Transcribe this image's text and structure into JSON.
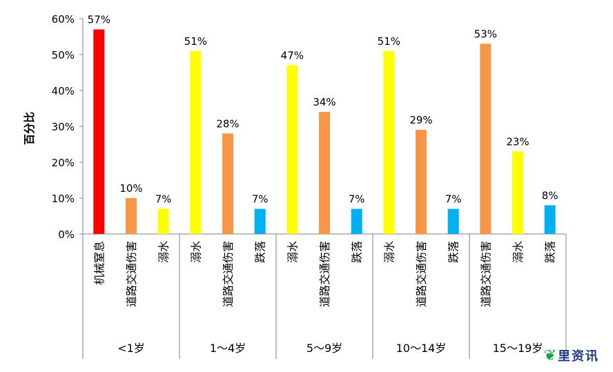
{
  "chart_data": {
    "type": "bar",
    "title": "",
    "ylabel": "百分比",
    "xlabel": "",
    "ylim": [
      0,
      60
    ],
    "yticks": [
      0,
      10,
      20,
      30,
      40,
      50,
      60
    ],
    "ytick_labels": [
      "0%",
      "10%",
      "20%",
      "30%",
      "40%",
      "50%",
      "60%"
    ],
    "grid": false,
    "legend": "none",
    "groups": [
      {
        "label": "<1岁",
        "bars": [
          {
            "category": "机械窒息",
            "value": 57,
            "label": "57%",
            "color": "#ff0000"
          },
          {
            "category": "道路交通伤害",
            "value": 10,
            "label": "10%",
            "color": "#f79646"
          },
          {
            "category": "溺水",
            "value": 7,
            "label": "7%",
            "color": "#ffff00"
          }
        ]
      },
      {
        "label": "1～4岁",
        "bars": [
          {
            "category": "溺水",
            "value": 51,
            "label": "51%",
            "color": "#ffff00"
          },
          {
            "category": "道路交通伤害",
            "value": 28,
            "label": "28%",
            "color": "#f79646"
          },
          {
            "category": "跌落",
            "value": 7,
            "label": "7%",
            "color": "#00b0f0"
          }
        ]
      },
      {
        "label": "5～9岁",
        "bars": [
          {
            "category": "溺水",
            "value": 47,
            "label": "47%",
            "color": "#ffff00"
          },
          {
            "category": "道路交通伤害",
            "value": 34,
            "label": "34%",
            "color": "#f79646"
          },
          {
            "category": "跌落",
            "value": 7,
            "label": "7%",
            "color": "#00b0f0"
          }
        ]
      },
      {
        "label": "10～14岁",
        "bars": [
          {
            "category": "溺水",
            "value": 51,
            "label": "51%",
            "color": "#ffff00"
          },
          {
            "category": "道路交通伤害",
            "value": 29,
            "label": "29%",
            "color": "#f79646"
          },
          {
            "category": "跌落",
            "value": 7,
            "label": "7%",
            "color": "#00b0f0"
          }
        ]
      },
      {
        "label": "15～19岁",
        "bars": [
          {
            "category": "道路交通伤害",
            "value": 53,
            "label": "53%",
            "color": "#f79646"
          },
          {
            "category": "溺水",
            "value": 23,
            "label": "23%",
            "color": "#ffff00"
          },
          {
            "category": "跌落",
            "value": 8,
            "label": "8%",
            "color": "#00b0f0"
          }
        ]
      }
    ]
  },
  "watermark": {
    "icon": "leaf-icon",
    "text": "里资讯"
  }
}
